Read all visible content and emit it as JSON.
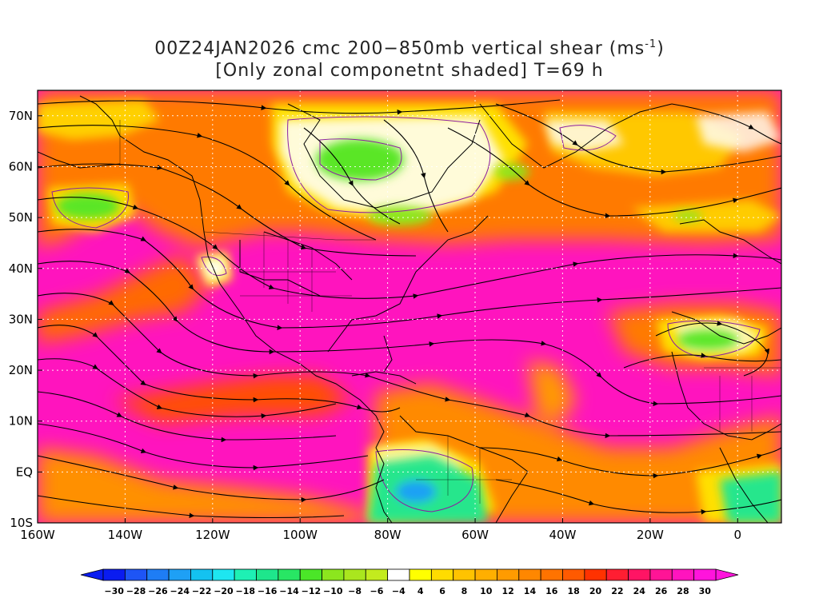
{
  "title": {
    "line1_text": "00Z24JAN2026 cmc 200−850mb vertical shear (ms",
    "line1_sup": "-1",
    "line1_close": ")",
    "line2": "[Only zonal componetnt shaded] T=69 h"
  },
  "axes": {
    "lon_labels": [
      "160W",
      "140W",
      "120W",
      "100W",
      "80W",
      "60W",
      "40W",
      "20W",
      "0"
    ],
    "lat_labels": [
      "70N",
      "60N",
      "50N",
      "40N",
      "30N",
      "20N",
      "10N",
      "EQ",
      "10S"
    ],
    "lon_range": [
      -160,
      10
    ],
    "lat_range": [
      -10,
      75
    ]
  },
  "colorbar": {
    "labels": [
      "-30",
      "-28",
      "-26",
      "-24",
      "-22",
      "-20",
      "-18",
      "-16",
      "-14",
      "-12",
      "-10",
      "-8",
      "-6",
      "-4",
      "4",
      "6",
      "8",
      "10",
      "12",
      "14",
      "16",
      "18",
      "20",
      "22",
      "24",
      "26",
      "28",
      "30"
    ],
    "colors": [
      "#0a1cf0",
      "#1e55f5",
      "#1e7df5",
      "#1ea0f5",
      "#14c2f0",
      "#1ee6f0",
      "#1ef0b4",
      "#1ee68c",
      "#28e664",
      "#4be628",
      "#8ce61e",
      "#aae61e",
      "#c3eb1e",
      "#ffffff",
      "#ffff00",
      "#ffdc00",
      "#ffc300",
      "#ffaf00",
      "#ff9b00",
      "#ff8700",
      "#ff7300",
      "#ff5a00",
      "#ff3200",
      "#ff1e32",
      "#ff1464",
      "#ff1496",
      "#ff14be",
      "#ff14dc"
    ]
  },
  "map": {
    "ocean_base_color": "#ff14be",
    "land_outline_color": "#000000",
    "contour_color": "#8c1ea0"
  }
}
